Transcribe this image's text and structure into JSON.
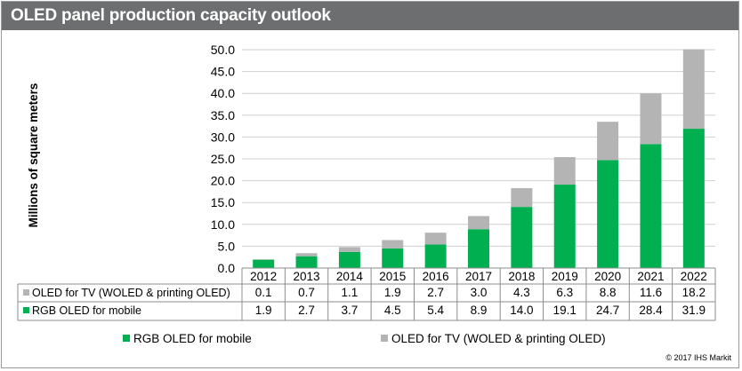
{
  "title": "OLED panel production capacity outlook",
  "copyright": "© 2017 IHS Markit",
  "chart_data": {
    "type": "bar",
    "stacked": true,
    "categories": [
      "2012",
      "2013",
      "2014",
      "2015",
      "2016",
      "2017",
      "2018",
      "2019",
      "2020",
      "2021",
      "2022"
    ],
    "series": [
      {
        "name": "RGB OLED for mobile",
        "color": "#00b050",
        "values": [
          1.9,
          2.7,
          3.7,
          4.5,
          5.4,
          8.9,
          14.0,
          19.1,
          24.7,
          28.4,
          31.9
        ],
        "labels": [
          "1.9",
          "2.7",
          "3.7",
          "4.5",
          "5.4",
          "8.9",
          "14.0",
          "19.1",
          "24.7",
          "28.4",
          "31.9"
        ]
      },
      {
        "name": "OLED for TV (WOLED & printing OLED)",
        "color": "#b4b4b4",
        "values": [
          0.1,
          0.7,
          1.1,
          1.9,
          2.7,
          3.0,
          4.3,
          6.3,
          8.8,
          11.6,
          18.2
        ],
        "labels": [
          "0.1",
          "0.7",
          "1.1",
          "1.9",
          "2.7",
          "3.0",
          "4.3",
          "6.3",
          "8.8",
          "11.6",
          "18.2"
        ]
      }
    ],
    "ylabel": "Millions of square meters",
    "ylim": [
      0,
      50
    ],
    "yticks": [
      "0.0",
      "5.0",
      "10.0",
      "15.0",
      "20.0",
      "25.0",
      "30.0",
      "35.0",
      "40.0",
      "45.0",
      "50.0"
    ],
    "grid": true,
    "data_table": true,
    "legend_position": "bottom"
  }
}
